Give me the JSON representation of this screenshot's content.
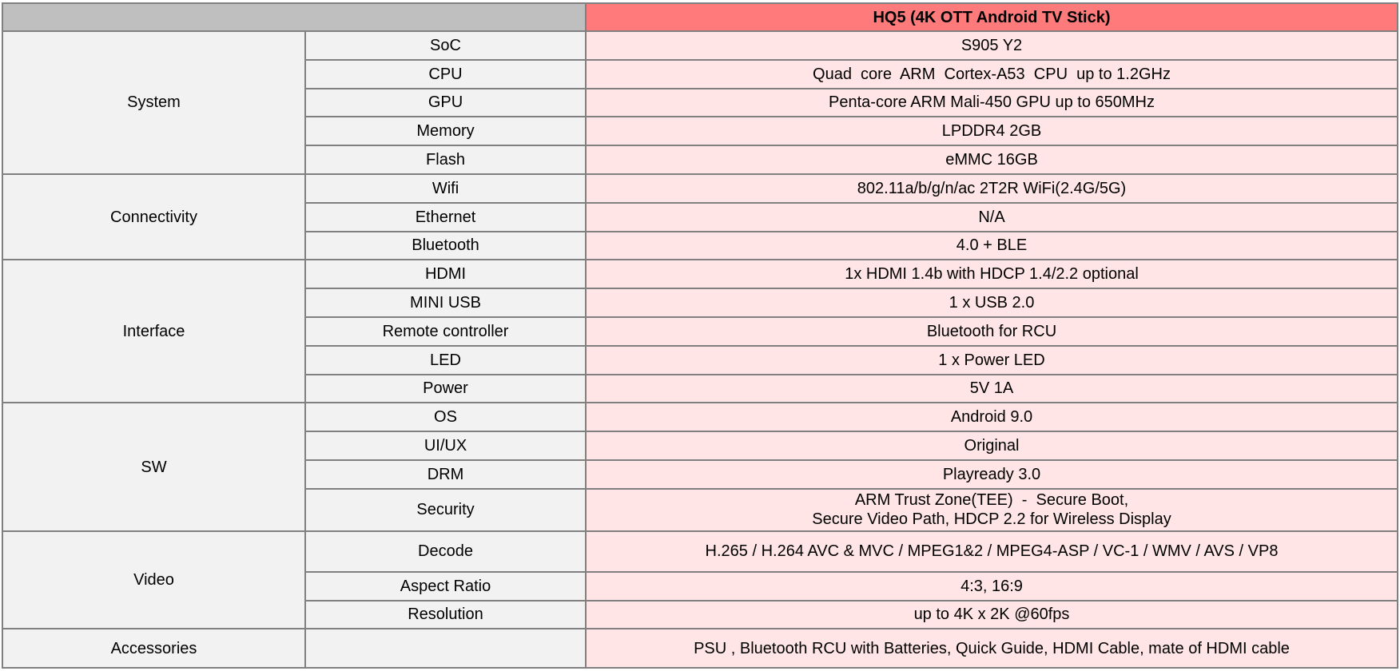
{
  "header": {
    "product": "HQ5 (4K OTT Android TV Stick)"
  },
  "colors": {
    "header_gray": "#bfbfbf",
    "header_accent": "#ff7b7b",
    "value_bg": "#ffe5e5",
    "label_bg": "#f2f2f2",
    "border": "#808080"
  },
  "groups": [
    {
      "category": "System",
      "rows": [
        {
          "feature": "SoC",
          "value": "S905 Y2"
        },
        {
          "feature": "CPU",
          "value": "Quad  core  ARM  Cortex-A53  CPU  up to 1.2GHz"
        },
        {
          "feature": "GPU",
          "value": "Penta-core ARM Mali-450 GPU up to 650MHz"
        },
        {
          "feature": "Memory",
          "value": "LPDDR4 2GB"
        },
        {
          "feature": "Flash",
          "value": "eMMC 16GB"
        }
      ]
    },
    {
      "category": "Connectivity",
      "rows": [
        {
          "feature": "Wifi",
          "value": "802.11a/b/g/n/ac 2T2R WiFi(2.4G/5G)"
        },
        {
          "feature": "Ethernet",
          "value": "N/A"
        },
        {
          "feature": "Bluetooth",
          "value": "4.0 + BLE"
        }
      ]
    },
    {
      "category": "Interface",
      "rows": [
        {
          "feature": "HDMI",
          "value": "1x HDMI 1.4b with HDCP 1.4/2.2 optional"
        },
        {
          "feature": "MINI USB",
          "value": "1 x USB 2.0"
        },
        {
          "feature": "Remote controller",
          "value": "Bluetooth for RCU"
        },
        {
          "feature": "LED",
          "value": "1 x Power LED"
        },
        {
          "feature": "Power",
          "value": "5V 1A"
        }
      ]
    },
    {
      "category": "SW",
      "rows": [
        {
          "feature": "OS",
          "value": "Android 9.0"
        },
        {
          "feature": "UI/UX",
          "value": "Original"
        },
        {
          "feature": "DRM",
          "value": "Playready 3.0"
        },
        {
          "feature": "Security",
          "value": "ARM Trust Zone(TEE)  -  Secure Boot,",
          "value2": "Secure Video Path, HDCP 2.2 for Wireless Display"
        }
      ]
    },
    {
      "category": "Video",
      "rows": [
        {
          "feature": "Decode",
          "value": "H.265 / H.264 AVC & MVC / MPEG1&2 / MPEG4-ASP / VC-1 / WMV / AVS / VP8"
        },
        {
          "feature": "Aspect Ratio",
          "value": "4:3, 16:9"
        },
        {
          "feature": "Resolution",
          "value": "up to 4K x 2K @60fps"
        }
      ]
    },
    {
      "category": "Accessories",
      "rows": [
        {
          "feature": "",
          "value": "PSU , Bluetooth RCU with Batteries, Quick Guide, HDMI Cable, mate of HDMI cable"
        }
      ]
    }
  ]
}
